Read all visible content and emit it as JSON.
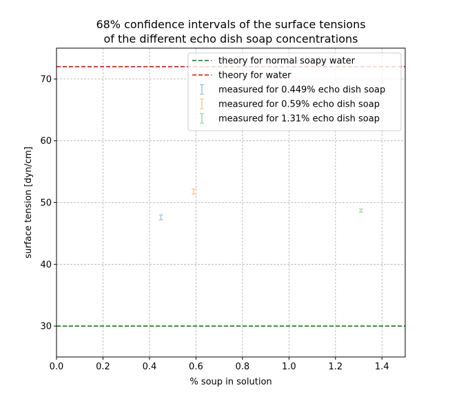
{
  "chart_data": {
    "type": "scatter",
    "title_lines": [
      "68% confidence intervals of the surface tensions",
      "of the different echo dish soap concentrations"
    ],
    "xlabel": "% soup in solution",
    "ylabel": "surface tension [dyn/cm]",
    "xlim": [
      0.0,
      1.5
    ],
    "ylim": [
      25,
      75
    ],
    "xticks": [
      0.0,
      0.2,
      0.4,
      0.6,
      0.8,
      1.0,
      1.2,
      1.4
    ],
    "xtick_labels": [
      "0.0",
      "0.2",
      "0.4",
      "0.6",
      "0.8",
      "1.0",
      "1.2",
      "1.4"
    ],
    "yticks": [
      30,
      40,
      50,
      60,
      70
    ],
    "ytick_labels": [
      "30",
      "40",
      "50",
      "60",
      "70"
    ],
    "grid": true,
    "legend_position": "top-right",
    "reference_lines": [
      {
        "name": "theory for normal soapy water",
        "y": 30,
        "color": "#008000",
        "style": "dashed"
      },
      {
        "name": "theory for water",
        "y": 72,
        "color": "#ff0000",
        "style": "dashed"
      }
    ],
    "series": [
      {
        "name": "measured for 0.449% echo dish soap",
        "x": 0.449,
        "y": 47.6,
        "yerr": 0.4,
        "color": "#1f77b4"
      },
      {
        "name": "measured for 0.59% echo dish soap",
        "x": 0.59,
        "y": 51.8,
        "yerr": 0.4,
        "color": "#ff7f0e"
      },
      {
        "name": "measured for 1.31% echo dish soap",
        "x": 1.31,
        "y": 48.7,
        "yerr": 0.25,
        "color": "#2ca02c"
      }
    ]
  }
}
